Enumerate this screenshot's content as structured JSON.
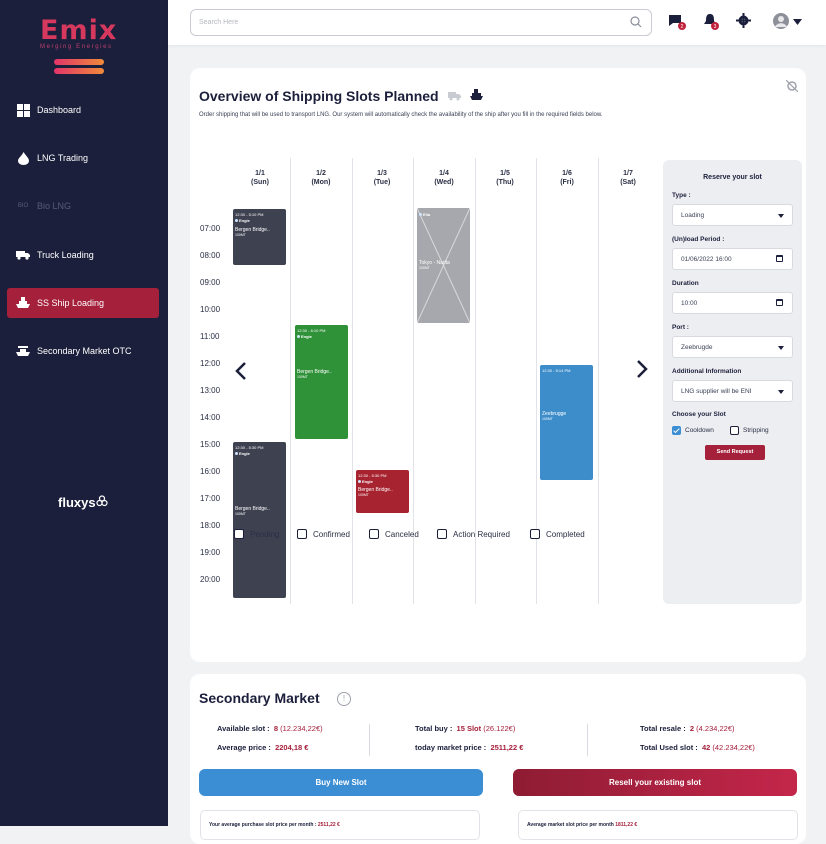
{
  "brand": {
    "logo": "Emix",
    "tagline": "Merging Energies",
    "partner": "fluxys"
  },
  "nav": [
    {
      "label": "Dashboard",
      "icon": "grid-icon",
      "state": "normal"
    },
    {
      "label": "LNG Trading",
      "icon": "flame-icon",
      "state": "normal"
    },
    {
      "label": "Bio LNG",
      "icon": "bio-icon",
      "state": "disabled"
    },
    {
      "label": "Truck Loading",
      "icon": "truck-icon",
      "state": "normal"
    },
    {
      "label": "SS Ship Loading",
      "icon": "ship-icon",
      "state": "active"
    },
    {
      "label": "Secondary Market OTC",
      "icon": "market-ship-icon",
      "state": "normal"
    }
  ],
  "topbar": {
    "search_placeholder": "Search Here",
    "chat_badge": "2",
    "bell_badge": "3"
  },
  "overview": {
    "title": "Overview of Shipping Slots Planned",
    "description": "Order shipping that will be used to transport LNG. Our system will automatically check the availability of the ship after you fill in the required fields below.",
    "days": [
      {
        "date": "1/1",
        "dow": "(Sun)"
      },
      {
        "date": "1/2",
        "dow": "(Mon)"
      },
      {
        "date": "1/3",
        "dow": "(Tue)"
      },
      {
        "date": "1/4",
        "dow": "(Wed)"
      },
      {
        "date": "1/5",
        "dow": "(Thu)"
      },
      {
        "date": "1/6",
        "dow": "(Fri)"
      },
      {
        "date": "1/7",
        "dow": "(Sat)"
      }
    ],
    "times": [
      "07:00",
      "08:00",
      "09:00",
      "10:00",
      "11:00",
      "12:00",
      "13:00",
      "14:00",
      "15:00",
      "16:00",
      "17:00",
      "18:00",
      "19:00",
      "20:00"
    ],
    "events": [
      {
        "time": "12:30 - 5:10 PM",
        "owner": "Engie",
        "name": "Bergen Bridge..",
        "volume": "100MT",
        "color": "#3e4150"
      },
      {
        "time": "12:30 - 5:30 PM",
        "owner": "Engie",
        "name": "Bergen Bridge..",
        "volume": "100MT",
        "color": "#3e4150"
      },
      {
        "time": "12:30 - 6:10 PM",
        "owner": "Engie",
        "name": "Bergen Bridge..",
        "volume": "100MT",
        "color": "#2f9138"
      },
      {
        "time": "12:30 - 5:30 PM",
        "owner": "Engie",
        "name": "Bergen Bridge..",
        "volume": "100MT",
        "color": "#a7232f"
      },
      {
        "time": "",
        "owner": "Eila",
        "name": "Tokyo - Narita",
        "volume": "100MT",
        "color": "#a7a8ad"
      },
      {
        "time": "12:30 - 5:14 PM",
        "owner": "",
        "name": "Zeebrugge",
        "volume": "100MT",
        "color": "#3d8dcb"
      }
    ],
    "legend": [
      "Pending",
      "Confirmed",
      "Canceled",
      "Action Required",
      "Completed"
    ]
  },
  "reserve": {
    "title": "Reserve your slot",
    "type_label": "Type :",
    "type_value": "Loading",
    "period_label": "(Un)load Period :",
    "period_value": "01/06/2022  16:00",
    "duration_label": "Duration",
    "duration_value": "10:00",
    "port_label": "Port :",
    "port_value": "Zeebrugde",
    "info_label": "Additional Information",
    "info_value": "LNG supplier will be ENI",
    "slot_label": "Choose your Slot",
    "opt1": "Cooldown",
    "opt1_checked": true,
    "opt2": "Stripping",
    "opt2_checked": false,
    "button": "Send Request"
  },
  "market": {
    "title": "Secondary Market",
    "available_label": "Available slot :",
    "available_value": "8",
    "available_sub": "(12.234,22€)",
    "avg_label": "Average price :",
    "avg_value": "2204,18 €",
    "buy_label": "Total buy :",
    "buy_value": "15 Slot",
    "buy_sub": "(26.122€)",
    "today_label": "today market price :",
    "today_value": "2511,22 €",
    "resale_label": "Total resale :",
    "resale_value": "2",
    "resale_sub": "(4.234,22€)",
    "used_label": "Total Used slot :",
    "used_value": "42",
    "used_sub": "(42.234,22€)",
    "buy_button": "Buy New Slot",
    "resell_button": "Resell your existing slot",
    "purchase_label": "Your average purchase slot price per month :",
    "purchase_value": "2511,22 €",
    "market_label": "Average market slot price per month",
    "market_value": "1811,22 €",
    "colors": {
      "buy": "#3b8ed4",
      "resell": "#a5203b"
    }
  }
}
